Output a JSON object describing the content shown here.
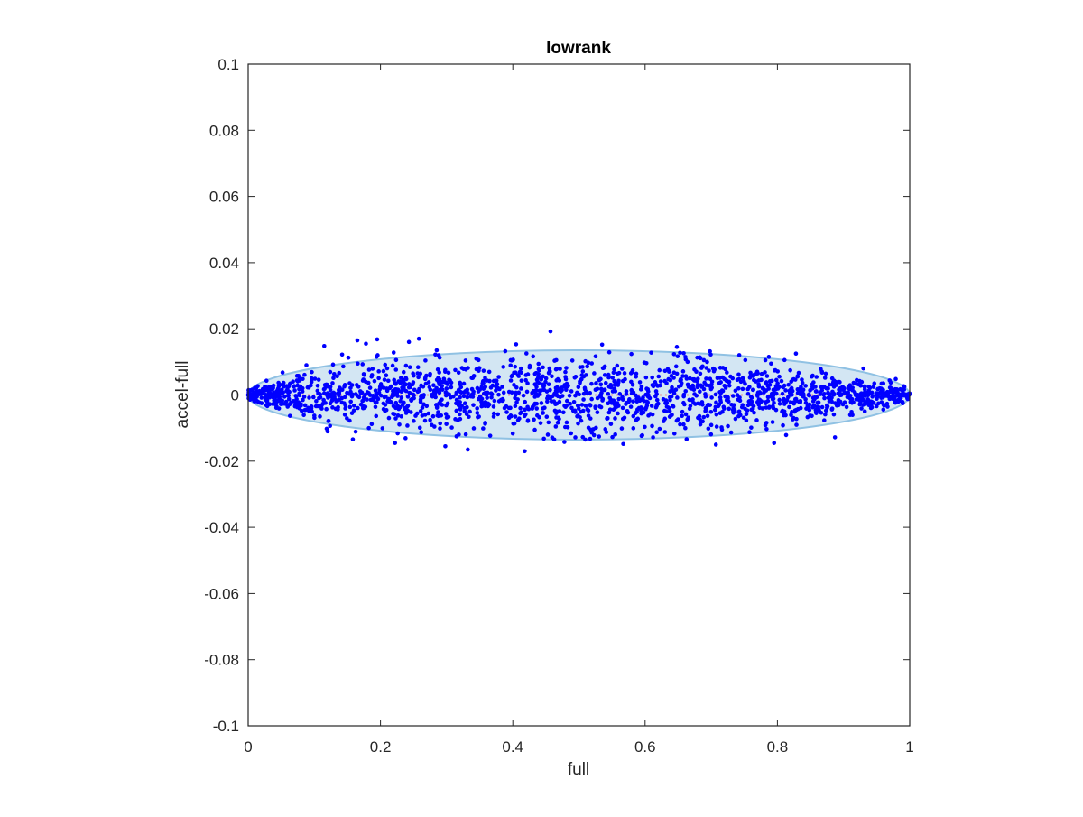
{
  "chart_data": {
    "type": "scatter",
    "title": "lowrank",
    "xlabel": "full",
    "ylabel": "accel-full",
    "xlim": [
      0,
      1
    ],
    "ylim": [
      -0.1,
      0.1
    ],
    "xticks": [
      0,
      0.2,
      0.4,
      0.6,
      0.8,
      1
    ],
    "xtick_labels": [
      "0",
      "0.2",
      "0.4",
      "0.6",
      "0.8",
      "1"
    ],
    "yticks": [
      -0.1,
      -0.08,
      -0.06,
      -0.04,
      -0.02,
      0,
      0.02,
      0.04,
      0.06,
      0.08,
      0.1
    ],
    "ytick_labels": [
      "-0.1",
      "-0.08",
      "-0.06",
      "-0.04",
      "-0.02",
      "0",
      "0.02",
      "0.04",
      "0.06",
      "0.08",
      "0.1"
    ],
    "grid": false,
    "box": true,
    "colors": {
      "points": "#0000ff",
      "ellipse_fill": "#d3e6f3",
      "ellipse_edge": "#8fc1e3",
      "mean_line": "#ff4040",
      "axes": "#262626"
    },
    "ellipse": {
      "center_x": 0.5,
      "center_y": 0.0,
      "semi_x": 0.5,
      "semi_y": 0.0135
    },
    "mean_line": {
      "x": [
        0,
        1
      ],
      "y": [
        0,
        0
      ],
      "style": "dotted"
    },
    "series": [
      {
        "type": "scatter",
        "points": [
          [
            0.115,
            0.0148
          ],
          [
            0.12,
            -0.011
          ],
          [
            0.165,
            0.0165
          ],
          [
            0.178,
            0.0155
          ],
          [
            0.195,
            0.0168
          ],
          [
            0.222,
            -0.0145
          ],
          [
            0.243,
            0.016
          ],
          [
            0.258,
            0.017
          ],
          [
            0.285,
            0.0135
          ],
          [
            0.298,
            -0.0155
          ],
          [
            0.332,
            -0.0165
          ],
          [
            0.405,
            0.0153
          ],
          [
            0.418,
            -0.017
          ],
          [
            0.457,
            0.0192
          ],
          [
            0.478,
            -0.0142
          ],
          [
            0.535,
            0.0152
          ],
          [
            0.567,
            -0.0148
          ],
          [
            0.648,
            0.0145
          ],
          [
            0.698,
            0.0132
          ],
          [
            0.707,
            -0.015
          ],
          [
            0.795,
            -0.0145
          ],
          [
            0.787,
            0.0115
          ],
          [
            0.828,
            0.0125
          ],
          [
            0.887,
            -0.0128
          ],
          [
            0.93,
            0.008
          ],
          [
            0.052,
            0.0068
          ],
          [
            0.088,
            0.009
          ],
          [
            0.142,
            0.0122
          ],
          [
            0.315,
            -0.0125
          ],
          [
            0.612,
            -0.0128
          ]
        ]
      }
    ]
  }
}
